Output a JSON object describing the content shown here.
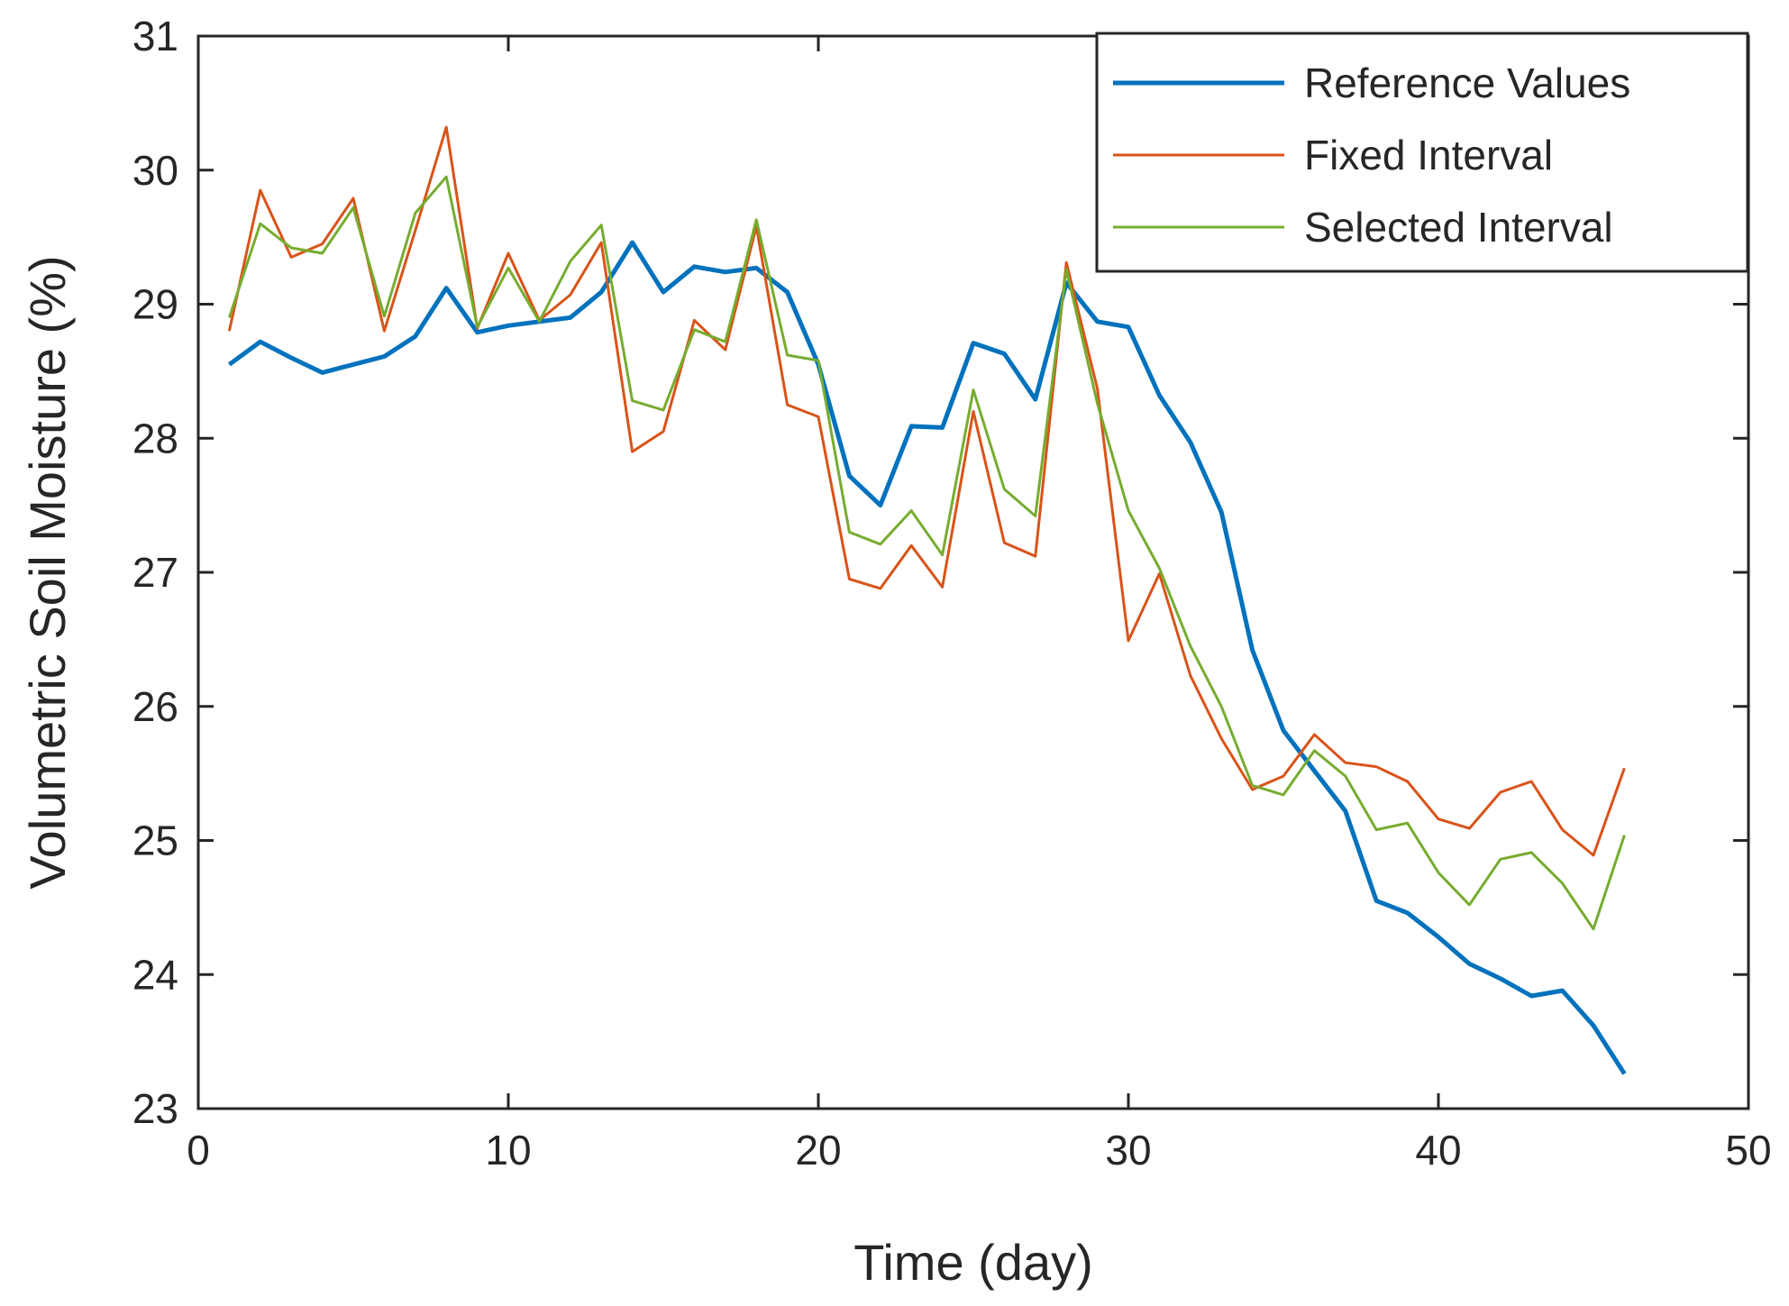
{
  "chart_data": {
    "type": "line",
    "title": "",
    "xlabel": "Time (day)",
    "ylabel": "Volumetric Soil Moisture (%)",
    "xlim": [
      0,
      50
    ],
    "ylim": [
      23,
      31
    ],
    "xticks": [
      0,
      10,
      20,
      30,
      40,
      50
    ],
    "yticks": [
      23,
      24,
      25,
      26,
      27,
      28,
      29,
      30,
      31
    ],
    "grid": false,
    "legend_position": "top-right",
    "x": [
      1,
      2,
      3,
      4,
      5,
      6,
      7,
      8,
      9,
      10,
      11,
      12,
      13,
      14,
      15,
      16,
      17,
      18,
      19,
      20,
      21,
      22,
      23,
      24,
      25,
      26,
      27,
      28,
      29,
      30,
      31,
      32,
      33,
      34,
      35,
      36,
      37,
      38,
      39,
      40,
      41,
      42,
      43,
      44,
      45,
      46
    ],
    "series": [
      {
        "name": "Reference Values",
        "color": "#0072bd",
        "width": "thick",
        "values": [
          28.55,
          28.72,
          28.6,
          28.49,
          28.55,
          28.61,
          28.76,
          29.12,
          28.79,
          28.84,
          28.87,
          28.9,
          29.09,
          29.46,
          29.09,
          29.28,
          29.24,
          29.27,
          29.09,
          28.55,
          27.72,
          27.5,
          28.09,
          28.08,
          28.71,
          28.63,
          28.29,
          29.16,
          28.87,
          28.83,
          28.32,
          27.97,
          27.45,
          26.42,
          25.82,
          25.52,
          25.22,
          24.55,
          24.46,
          24.28,
          24.08,
          23.97,
          23.84,
          23.88,
          23.62,
          23.26
        ]
      },
      {
        "name": "Fixed Interval",
        "color": "#d95319",
        "width": "thin",
        "values": [
          28.8,
          29.85,
          29.35,
          29.45,
          29.79,
          28.8,
          29.55,
          30.32,
          28.82,
          29.38,
          28.88,
          29.07,
          29.46,
          27.9,
          28.05,
          28.88,
          28.66,
          29.58,
          28.25,
          28.16,
          26.95,
          26.88,
          27.2,
          26.89,
          28.2,
          27.22,
          27.12,
          29.31,
          28.37,
          26.49,
          26.99,
          26.23,
          25.76,
          25.38,
          25.48,
          25.79,
          25.58,
          25.55,
          25.44,
          25.16,
          25.09,
          25.36,
          25.44,
          25.08,
          24.89,
          25.54
        ]
      },
      {
        "name": "Selected Interval",
        "color": "#77ac30",
        "width": "thin",
        "values": [
          28.9,
          29.6,
          29.42,
          29.38,
          29.72,
          28.91,
          29.68,
          29.95,
          28.83,
          29.27,
          28.87,
          29.32,
          29.59,
          28.28,
          28.21,
          28.81,
          28.72,
          29.63,
          28.62,
          28.58,
          27.3,
          27.21,
          27.46,
          27.13,
          28.36,
          27.62,
          27.42,
          29.26,
          28.26,
          27.46,
          27.03,
          26.45,
          26.0,
          25.41,
          25.34,
          25.67,
          25.48,
          25.08,
          25.13,
          24.76,
          24.52,
          24.86,
          24.91,
          24.68,
          24.34,
          25.04
        ]
      }
    ]
  }
}
